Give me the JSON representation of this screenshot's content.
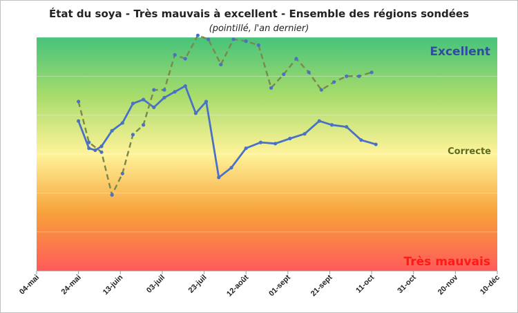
{
  "chart_data": {
    "type": "line",
    "title": "État du soya - Très mauvais à excellent - Ensemble des régions sondées",
    "subtitle": "(pointillé, l'an dernier)",
    "zone_labels": [
      {
        "text": "Excellent",
        "color": "#2e4d9e"
      },
      {
        "text": "Correcte",
        "color": "#5a6b1f"
      },
      {
        "text": "Très mauvais",
        "color": "#ff1a1a"
      }
    ],
    "x_tick_labels": [
      "04-mai",
      "24-mai",
      "13-juin",
      "03-juil",
      "23-juil",
      "12-août",
      "01-sept",
      "21-sept",
      "11-oct",
      "31-oct",
      "20-nov",
      "10-déc"
    ],
    "x_range_days": [
      0,
      220
    ],
    "y_range": [
      1,
      7
    ],
    "gradient_stops": [
      "#ff5a5a",
      "#f7a23a",
      "#fff39a",
      "#a8dc6b",
      "#46c37b"
    ],
    "series": [
      {
        "style": "solid",
        "color": "#4a71c4",
        "points": [
          [
            20,
            4.85
          ],
          [
            25,
            4.15
          ],
          [
            28,
            4.1
          ],
          [
            31,
            4.2
          ],
          [
            36,
            4.6
          ],
          [
            41,
            4.8
          ],
          [
            46,
            5.3
          ],
          [
            51,
            5.4
          ],
          [
            56,
            5.2
          ],
          [
            61,
            5.45
          ],
          [
            66,
            5.6
          ],
          [
            71,
            5.75
          ],
          [
            76,
            5.05
          ],
          [
            81,
            5.35
          ],
          [
            87,
            3.4
          ],
          [
            93,
            3.65
          ],
          [
            100,
            4.15
          ],
          [
            107,
            4.3
          ],
          [
            114,
            4.27
          ],
          [
            121,
            4.4
          ],
          [
            128,
            4.52
          ],
          [
            135,
            4.85
          ],
          [
            141,
            4.75
          ],
          [
            148,
            4.7
          ],
          [
            155,
            4.36
          ],
          [
            162,
            4.25
          ]
        ]
      },
      {
        "style": "dashed",
        "color": "#7a8a4f",
        "points": [
          [
            20,
            5.35
          ],
          [
            25,
            4.3
          ],
          [
            31,
            4.05
          ],
          [
            36,
            2.95
          ],
          [
            41,
            3.5
          ],
          [
            46,
            4.5
          ],
          [
            51,
            4.75
          ],
          [
            56,
            5.65
          ],
          [
            61,
            5.65
          ],
          [
            66,
            6.55
          ],
          [
            71,
            6.45
          ],
          [
            77,
            7.05
          ],
          [
            82,
            6.95
          ],
          [
            88,
            6.3
          ],
          [
            94,
            6.95
          ],
          [
            100,
            6.9
          ],
          [
            106,
            6.8
          ],
          [
            112,
            5.7
          ],
          [
            118,
            6.05
          ],
          [
            124,
            6.45
          ],
          [
            130,
            6.1
          ],
          [
            136,
            5.65
          ],
          [
            142,
            5.85
          ],
          [
            148,
            6.0
          ],
          [
            154,
            6.0
          ],
          [
            160,
            6.1
          ]
        ]
      }
    ]
  }
}
